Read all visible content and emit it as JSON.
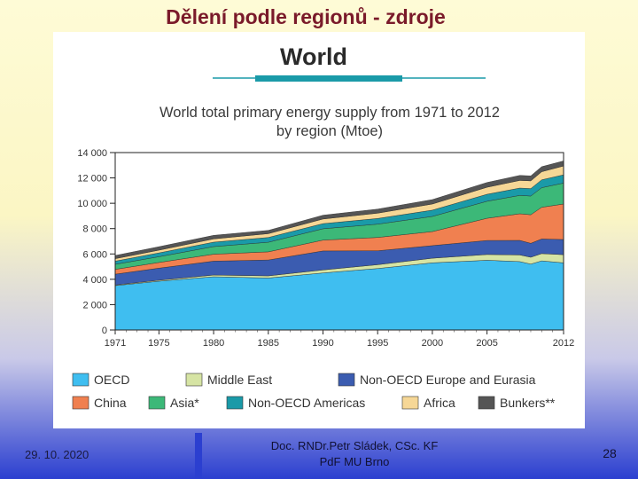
{
  "slide": {
    "title": "Dělení podle regionů - zdroje",
    "footer_date": "29. 10. 2020",
    "footer_author_line1": "Doc. RNDr.Petr Sládek, CSc. KF",
    "footer_author_line2": "PdF MU Brno",
    "page_number": "28"
  },
  "chart_data": {
    "type": "area",
    "heading": "World",
    "title": "World total primary energy supply from 1971 to 2012",
    "subtitle": "by region (Mtoe)",
    "x": [
      1971,
      1975,
      1980,
      1985,
      1990,
      1995,
      2000,
      2005,
      2008,
      2009,
      2010,
      2012
    ],
    "x_ticks": [
      "1971",
      "1975",
      "1980",
      "1985",
      "1990",
      "1995",
      "2000",
      "2005",
      "2012"
    ],
    "y_ticks": [
      "0",
      "2 000",
      "4 000",
      "6 000",
      "8 000",
      "10 000",
      "12 000",
      "14 000"
    ],
    "ylim": [
      0,
      14000
    ],
    "grid": false,
    "legend_position": "bottom",
    "stacked": true,
    "series": [
      {
        "name": "OECD",
        "color": "#3fbef0",
        "values": [
          3500,
          3850,
          4200,
          4100,
          4500,
          4850,
          5300,
          5500,
          5400,
          5200,
          5450,
          5300
        ]
      },
      {
        "name": "Middle East",
        "color": "#d6e4a4",
        "values": [
          50,
          80,
          130,
          170,
          240,
          300,
          360,
          460,
          520,
          540,
          580,
          640
        ]
      },
      {
        "name": "Non-OECD Europe and Eurasia",
        "color": "#3b5cb0",
        "values": [
          850,
          950,
          1100,
          1250,
          1500,
          1100,
          1000,
          1100,
          1150,
          1100,
          1150,
          1200
        ]
      },
      {
        "name": "China",
        "color": "#f08050",
        "values": [
          380,
          450,
          550,
          650,
          850,
          1050,
          1100,
          1750,
          2100,
          2250,
          2500,
          2800
        ]
      },
      {
        "name": "Asia*",
        "color": "#3cb878",
        "values": [
          400,
          450,
          600,
          750,
          900,
          1050,
          1200,
          1350,
          1450,
          1480,
          1550,
          1650
        ]
      },
      {
        "name": "Non-OECD Americas",
        "color": "#1a9aa8",
        "values": [
          250,
          300,
          350,
          380,
          400,
          450,
          500,
          550,
          580,
          590,
          620,
          650
        ]
      },
      {
        "name": "Africa",
        "color": "#f6d796",
        "values": [
          200,
          220,
          260,
          300,
          370,
          420,
          480,
          550,
          600,
          610,
          640,
          700
        ]
      },
      {
        "name": "Bunkers**",
        "color": "#555555",
        "values": [
          250,
          270,
          280,
          260,
          300,
          320,
          350,
          380,
          400,
          390,
          400,
          400
        ]
      }
    ]
  }
}
